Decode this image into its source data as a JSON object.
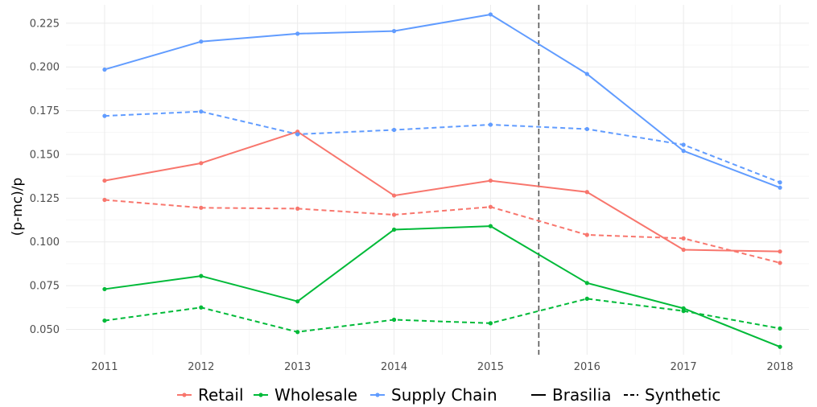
{
  "chart_data": {
    "type": "line",
    "xlabel": "",
    "ylabel": "(p-mc)/p",
    "x": [
      2011,
      2012,
      2013,
      2014,
      2015,
      2016,
      2017,
      2018
    ],
    "xticks": [
      "2011",
      "2012",
      "2013",
      "2014",
      "2015",
      "2016",
      "2017",
      "2018"
    ],
    "yticks": [
      "0.050",
      "0.075",
      "0.100",
      "0.125",
      "0.150",
      "0.175",
      "0.200",
      "0.225"
    ],
    "ylim": [
      0.0355,
      0.2355
    ],
    "xlim": [
      2010.6,
      2018.3
    ],
    "grid": true,
    "legend_position": "bottom",
    "vline": {
      "x": 2015.5,
      "style": "dashed",
      "color": "#555555"
    },
    "series": [
      {
        "name": "Retail",
        "group": "Brasilia",
        "color": "#F8766D",
        "dash": "solid",
        "values": [
          0.135,
          0.145,
          0.163,
          0.1265,
          0.135,
          0.1285,
          0.0955,
          0.0945
        ]
      },
      {
        "name": "Retail",
        "group": "Synthetic",
        "color": "#F8766D",
        "dash": "dashed",
        "values": [
          0.124,
          0.1195,
          0.119,
          0.1155,
          0.12,
          0.104,
          0.102,
          0.088
        ]
      },
      {
        "name": "Wholesale",
        "group": "Brasilia",
        "color": "#00BA38",
        "dash": "solid",
        "values": [
          0.073,
          0.0805,
          0.066,
          0.107,
          0.109,
          0.0765,
          0.062,
          0.04
        ]
      },
      {
        "name": "Wholesale",
        "group": "Synthetic",
        "color": "#00BA38",
        "dash": "dashed",
        "values": [
          0.055,
          0.0625,
          0.0485,
          0.0555,
          0.0535,
          0.0675,
          0.0605,
          0.0505
        ]
      },
      {
        "name": "Supply Chain",
        "group": "Brasilia",
        "color": "#619CFF",
        "dash": "solid",
        "values": [
          0.1985,
          0.2145,
          0.219,
          0.2205,
          0.23,
          0.196,
          0.152,
          0.131
        ]
      },
      {
        "name": "Supply Chain",
        "group": "Synthetic",
        "color": "#619CFF",
        "dash": "dashed",
        "values": [
          0.172,
          0.1745,
          0.1615,
          0.164,
          0.167,
          0.1645,
          0.1555,
          0.134
        ]
      }
    ],
    "legend": {
      "color_entries": [
        {
          "label": "Retail",
          "color": "#F8766D"
        },
        {
          "label": "Wholesale",
          "color": "#00BA38"
        },
        {
          "label": "Supply Chain",
          "color": "#619CFF"
        }
      ],
      "linetype_entries": [
        {
          "label": "Brasilia",
          "dash": "solid"
        },
        {
          "label": "Synthetic",
          "dash": "dashed"
        }
      ]
    }
  }
}
